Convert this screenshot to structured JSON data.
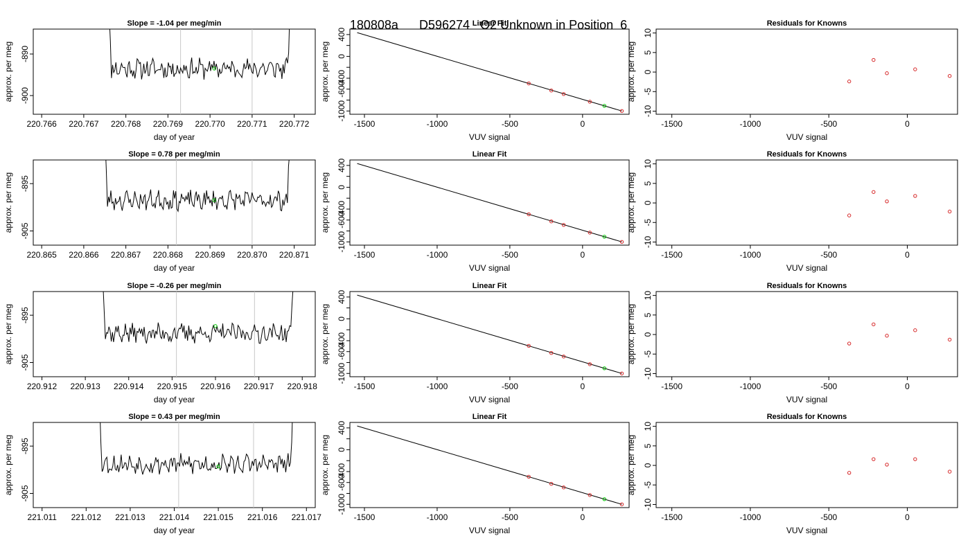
{
  "page": {
    "title_parts": [
      "180808a",
      "D596274",
      "O2 Unknown in Position  6"
    ]
  },
  "styles": {
    "line_color": "#000000",
    "vline_color": "#c8c8c8",
    "known_point_color": "#d62728",
    "unknown_point_color": "#00c800"
  },
  "chart_data": [
    {
      "type": "line",
      "panel": "time-series",
      "row": 1,
      "title": "Slope =  -1.04  per meg/min",
      "xlabel": "day of year",
      "ylabel": "approx. per meg",
      "xlim": [
        220.7658,
        220.7725
      ],
      "ylim": [
        -904.5,
        -884
      ],
      "xticks": [
        "220.766",
        "220.767",
        "220.768",
        "220.769",
        "220.770",
        "220.771",
        "220.772"
      ],
      "xtick_values": [
        220.766,
        220.767,
        220.768,
        220.769,
        220.77,
        220.771,
        220.772
      ],
      "yticks": [
        -890,
        -900
      ],
      "ytick_labels": [
        "-890",
        "-900"
      ],
      "vlines": [
        220.7693,
        220.771
      ],
      "series_range": [
        220.7675,
        220.772
      ],
      "base_level": -893.5,
      "noise": 2.0,
      "seed": 11,
      "unknown_point": {
        "x": 220.7701,
        "y": -893.5
      }
    },
    {
      "type": "line",
      "panel": "time-series",
      "row": 2,
      "title": "Slope =  0.78  per meg/min",
      "xlabel": "day of year",
      "ylabel": "approx. per meg",
      "xlim": [
        220.8648,
        220.8715
      ],
      "ylim": [
        -908,
        -890
      ],
      "xticks": [
        "220.865",
        "220.866",
        "220.867",
        "220.868",
        "220.869",
        "220.870",
        "220.871"
      ],
      "xtick_values": [
        220.865,
        220.866,
        220.867,
        220.868,
        220.869,
        220.87,
        220.871
      ],
      "yticks": [
        -895,
        -905
      ],
      "ytick_labels": [
        "-895",
        "-905"
      ],
      "vlines": [
        220.8682,
        220.87
      ],
      "series_range": [
        220.8664,
        220.871
      ],
      "base_level": -898.5,
      "noise": 1.7,
      "seed": 23,
      "unknown_point": {
        "x": 220.8691,
        "y": -898.5
      }
    },
    {
      "type": "line",
      "panel": "time-series",
      "row": 3,
      "title": "Slope =  -0.26  per meg/min",
      "xlabel": "day of year",
      "ylabel": "approx. per meg",
      "xlim": [
        220.9118,
        220.9183
      ],
      "ylim": [
        -908,
        -890
      ],
      "xticks": [
        "220.912",
        "220.913",
        "220.914",
        "220.915",
        "220.916",
        "220.917",
        "220.918"
      ],
      "xtick_values": [
        220.912,
        220.913,
        220.914,
        220.915,
        220.916,
        220.917,
        220.918
      ],
      "yticks": [
        -895,
        -905
      ],
      "ytick_labels": [
        "-895",
        "-905"
      ],
      "vlines": [
        220.9151,
        220.9169
      ],
      "series_range": [
        220.9133,
        220.9179
      ],
      "base_level": -898.8,
      "noise": 1.7,
      "seed": 37,
      "unknown_point": {
        "x": 220.916,
        "y": -897.3
      }
    },
    {
      "type": "line",
      "panel": "time-series",
      "row": 4,
      "title": "Slope =  0.43  per meg/min",
      "xlabel": "day of year",
      "ylabel": "approx. per meg",
      "xlim": [
        221.0108,
        221.0172
      ],
      "ylim": [
        -908,
        -890
      ],
      "xticks": [
        "221.011",
        "221.012",
        "221.013",
        "221.014",
        "221.015",
        "221.016",
        "221.017"
      ],
      "xtick_values": [
        221.011,
        221.012,
        221.013,
        221.014,
        221.015,
        221.016,
        221.017
      ],
      "yticks": [
        -895,
        -905
      ],
      "ytick_labels": [
        "-895",
        "-905"
      ],
      "vlines": [
        221.0141,
        221.0158
      ],
      "series_range": [
        221.0122,
        221.0168
      ],
      "base_level": -898.8,
      "noise": 1.7,
      "seed": 53,
      "unknown_point": {
        "x": 221.015,
        "y": -899.3
      }
    },
    {
      "type": "scatter",
      "panel": "linear-fit",
      "row": 1,
      "title": "Linear Fit",
      "xlabel": "VUV signal",
      "ylabel": "approx. per meg",
      "xlim": [
        -1600,
        320
      ],
      "ylim": [
        -1060,
        500
      ],
      "xticks": [
        -1500,
        -1000,
        -500,
        0
      ],
      "xtick_labels": [
        "-1500",
        "-1000",
        "-500",
        "0"
      ],
      "yticks": [
        -1000,
        -800,
        -600,
        -400,
        -200,
        0,
        200,
        400
      ],
      "ytick_labels": [
        "-1000",
        "",
        "-600",
        "-400",
        "",
        "0",
        "",
        "400"
      ],
      "fit_line": [
        [
          -1550,
          435
        ],
        [
          270,
          -1000
        ]
      ],
      "known_points": [
        [
          -370,
          -495
        ],
        [
          -215,
          -625
        ],
        [
          -130,
          -690
        ],
        [
          50,
          -830
        ],
        [
          270,
          -1000
        ]
      ],
      "unknown_point": [
        150,
        -905
      ]
    },
    {
      "type": "scatter",
      "panel": "linear-fit",
      "row": 2,
      "title": "Linear Fit",
      "xlabel": "VUV signal",
      "ylabel": "approx. per meg",
      "xlim": [
        -1600,
        320
      ],
      "ylim": [
        -1060,
        500
      ],
      "xticks": [
        -1500,
        -1000,
        -500,
        0
      ],
      "xtick_labels": [
        "-1500",
        "-1000",
        "-500",
        "0"
      ],
      "yticks": [
        -1000,
        -800,
        -600,
        -400,
        -200,
        0,
        200,
        400
      ],
      "ytick_labels": [
        "-1000",
        "",
        "-600",
        "-400",
        "",
        "0",
        "",
        "400"
      ],
      "fit_line": [
        [
          -1550,
          435
        ],
        [
          270,
          -1000
        ]
      ],
      "known_points": [
        [
          -370,
          -495
        ],
        [
          -215,
          -625
        ],
        [
          -130,
          -690
        ],
        [
          50,
          -830
        ],
        [
          270,
          -1000
        ]
      ],
      "unknown_point": [
        150,
        -905
      ]
    },
    {
      "type": "scatter",
      "panel": "linear-fit",
      "row": 3,
      "title": "Linear Fit",
      "xlabel": "VUV signal",
      "ylabel": "approx. per meg",
      "xlim": [
        -1600,
        320
      ],
      "ylim": [
        -1060,
        500
      ],
      "xticks": [
        -1500,
        -1000,
        -500,
        0
      ],
      "xtick_labels": [
        "-1500",
        "-1000",
        "-500",
        "0"
      ],
      "yticks": [
        -1000,
        -800,
        -600,
        -400,
        -200,
        0,
        200,
        400
      ],
      "ytick_labels": [
        "-1000",
        "",
        "-600",
        "-400",
        "",
        "0",
        "",
        "400"
      ],
      "fit_line": [
        [
          -1550,
          435
        ],
        [
          270,
          -1000
        ]
      ],
      "known_points": [
        [
          -370,
          -495
        ],
        [
          -215,
          -625
        ],
        [
          -130,
          -690
        ],
        [
          50,
          -830
        ],
        [
          270,
          -1000
        ]
      ],
      "unknown_point": [
        150,
        -905
      ]
    },
    {
      "type": "scatter",
      "panel": "linear-fit",
      "row": 4,
      "title": "Linear Fit",
      "xlabel": "VUV signal",
      "ylabel": "approx. per meg",
      "xlim": [
        -1600,
        320
      ],
      "ylim": [
        -1060,
        500
      ],
      "xticks": [
        -1500,
        -1000,
        -500,
        0
      ],
      "xtick_labels": [
        "-1500",
        "-1000",
        "-500",
        "0"
      ],
      "yticks": [
        -1000,
        -800,
        -600,
        -400,
        -200,
        0,
        200,
        400
      ],
      "ytick_labels": [
        "-1000",
        "",
        "-600",
        "-400",
        "",
        "0",
        "",
        "400"
      ],
      "fit_line": [
        [
          -1550,
          435
        ],
        [
          270,
          -1000
        ]
      ],
      "known_points": [
        [
          -370,
          -495
        ],
        [
          -215,
          -625
        ],
        [
          -130,
          -690
        ],
        [
          50,
          -830
        ],
        [
          270,
          -1000
        ]
      ],
      "unknown_point": [
        150,
        -905
      ]
    },
    {
      "type": "scatter",
      "panel": "residuals",
      "row": 1,
      "title": "Residuals for Knowns",
      "xlabel": "VUV signal",
      "ylabel": "approx. per meg",
      "xlim": [
        -1600,
        320
      ],
      "ylim": [
        -10.8,
        11
      ],
      "xticks": [
        -1500,
        -1000,
        -500,
        0
      ],
      "xtick_labels": [
        "-1500",
        "-1000",
        "-500",
        "0"
      ],
      "yticks": [
        -10,
        -5,
        0,
        5,
        10
      ],
      "ytick_labels": [
        "-10",
        "-5",
        "0",
        "5",
        "10"
      ],
      "points": [
        [
          -370,
          -2.4
        ],
        [
          -215,
          3.1
        ],
        [
          -130,
          -0.3
        ],
        [
          50,
          0.7
        ],
        [
          270,
          -1.0
        ]
      ]
    },
    {
      "type": "scatter",
      "panel": "residuals",
      "row": 2,
      "title": "Residuals for Knowns",
      "xlabel": "VUV signal",
      "ylabel": "approx. per meg",
      "xlim": [
        -1600,
        320
      ],
      "ylim": [
        -10.8,
        11
      ],
      "xticks": [
        -1500,
        -1000,
        -500,
        0
      ],
      "xtick_labels": [
        "-1500",
        "-1000",
        "-500",
        "0"
      ],
      "yticks": [
        -10,
        -5,
        0,
        5,
        10
      ],
      "ytick_labels": [
        "-10",
        "-5",
        "0",
        "5",
        "10"
      ],
      "points": [
        [
          -370,
          -3.2
        ],
        [
          -215,
          2.8
        ],
        [
          -130,
          0.4
        ],
        [
          50,
          1.8
        ],
        [
          270,
          -2.2
        ]
      ]
    },
    {
      "type": "scatter",
      "panel": "residuals",
      "row": 3,
      "title": "Residuals for Knowns",
      "xlabel": "VUV signal",
      "ylabel": "approx. per meg",
      "xlim": [
        -1600,
        320
      ],
      "ylim": [
        -10.8,
        11
      ],
      "xticks": [
        -1500,
        -1000,
        -500,
        0
      ],
      "xtick_labels": [
        "-1500",
        "-1000",
        "-500",
        "0"
      ],
      "yticks": [
        -10,
        -5,
        0,
        5,
        10
      ],
      "ytick_labels": [
        "-10",
        "-5",
        "0",
        "5",
        "10"
      ],
      "points": [
        [
          -370,
          -2.3
        ],
        [
          -215,
          2.6
        ],
        [
          -130,
          -0.3
        ],
        [
          50,
          1.1
        ],
        [
          270,
          -1.3
        ]
      ]
    },
    {
      "type": "scatter",
      "panel": "residuals",
      "row": 4,
      "title": "Residuals for Knowns",
      "xlabel": "VUV signal",
      "ylabel": "approx. per meg",
      "xlim": [
        -1600,
        320
      ],
      "ylim": [
        -10.8,
        11
      ],
      "xticks": [
        -1500,
        -1000,
        -500,
        0
      ],
      "xtick_labels": [
        "-1500",
        "-1000",
        "-500",
        "0"
      ],
      "yticks": [
        -10,
        -5,
        0,
        5,
        10
      ],
      "ytick_labels": [
        "-10",
        "-5",
        "0",
        "5",
        "10"
      ],
      "points": [
        [
          -370,
          -1.9
        ],
        [
          -215,
          1.6
        ],
        [
          -130,
          0.2
        ],
        [
          50,
          1.6
        ],
        [
          270,
          -1.6
        ]
      ]
    }
  ]
}
